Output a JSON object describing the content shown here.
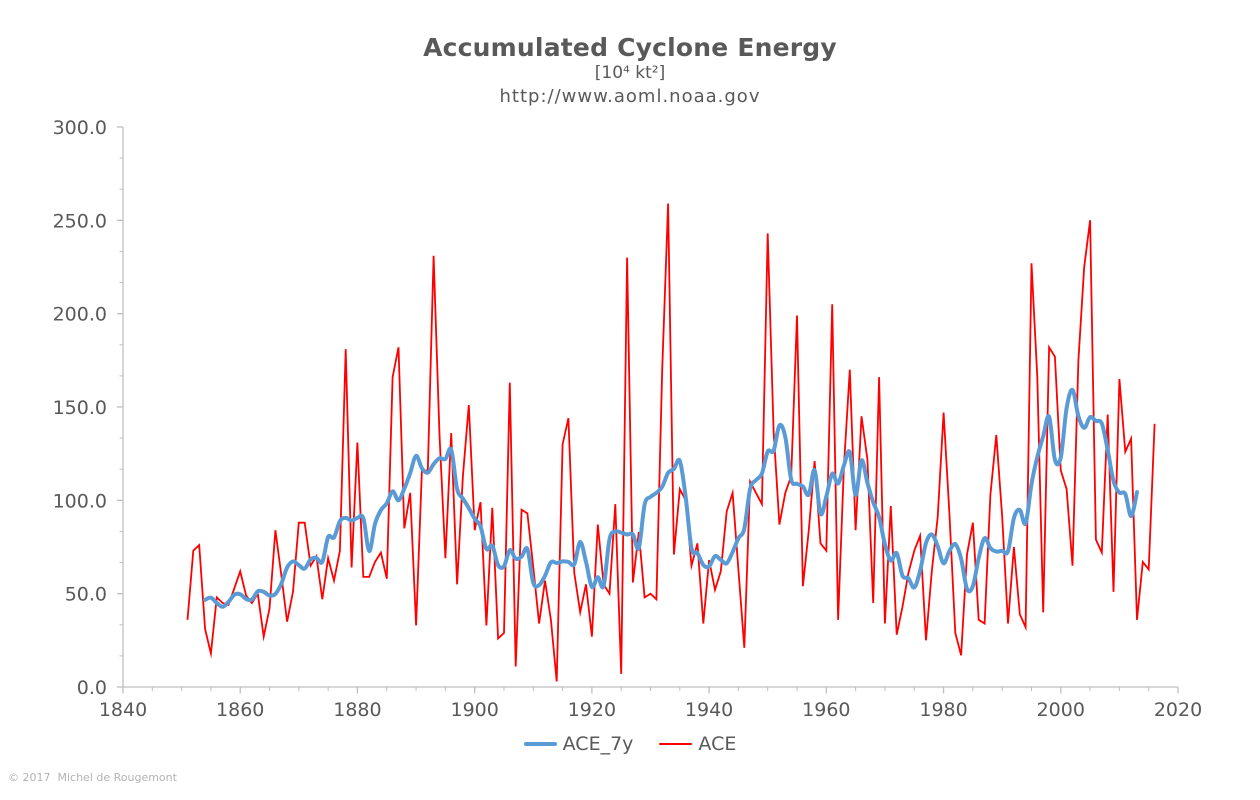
{
  "header": {
    "title": "Accumulated Cyclone Energy",
    "subtitle": "[10⁴ kt²]",
    "source_url": "http://www.aoml.noaa.gov"
  },
  "footer": {
    "copyright": "© 2017  Michel de Rougemont"
  },
  "legend": {
    "position": "bottom-center",
    "items": [
      {
        "label": "ACE_7y",
        "color": "#5B9BD5",
        "line_width": 4
      },
      {
        "label": "ACE",
        "color": "#FF0000",
        "line_width": 2
      }
    ]
  },
  "chart_data": {
    "type": "line",
    "title": "Accumulated Cyclone Energy",
    "subtitle": "[10⁴ kt²]",
    "source": "http://www.aoml.noaa.gov",
    "grid": false,
    "xlim": [
      1840,
      2020
    ],
    "ylim": [
      0,
      300
    ],
    "axes": {
      "x": {
        "min": 1840,
        "max": 2020,
        "tick_step": 20,
        "minor_step": 5,
        "tick_labels": [
          "1840",
          "1860",
          "1880",
          "1900",
          "1920",
          "1940",
          "1960",
          "1980",
          "2000",
          "2020"
        ]
      },
      "y": {
        "min": 0,
        "max": 300,
        "tick_step": 50,
        "minor_divisions": 3,
        "tick_labels": [
          "0.0",
          "50.0",
          "100.0",
          "150.0",
          "200.0",
          "250.0",
          "300.0"
        ]
      }
    },
    "x_years": {
      "start": 1851,
      "end": 2016,
      "step": 1
    },
    "series": [
      {
        "name": "ACE_7y",
        "color": "#5B9BD5",
        "line_width": 4,
        "smooth": true,
        "derived": "7-year centered moving average of ACE",
        "span": {
          "start": 1854,
          "end": 2013
        }
      },
      {
        "name": "ACE",
        "color": "#FF0000",
        "line_width": 1.8,
        "smooth": false,
        "values": [
          36,
          73,
          76,
          31,
          18,
          48,
          45,
          44,
          53,
          62,
          49,
          45,
          50,
          27,
          42,
          84,
          60,
          35,
          51,
          88,
          88,
          65,
          70,
          47,
          69,
          57,
          73,
          181,
          64,
          131,
          59,
          59,
          67,
          72,
          58,
          166,
          182,
          85,
          104,
          33,
          116,
          116,
          231,
          135,
          69,
          136,
          55,
          113,
          151,
          84,
          99,
          33,
          96,
          26,
          29,
          163,
          11,
          95,
          93,
          64,
          34,
          57,
          36,
          3,
          130,
          144,
          61,
          40,
          55,
          27,
          87,
          55,
          50,
          98,
          7,
          230,
          56,
          83,
          48,
          50,
          47,
          170,
          259,
          71,
          106,
          100,
          65,
          77,
          34,
          68,
          52,
          62,
          94,
          104,
          63,
          21,
          110,
          104,
          98,
          243,
          137,
          87,
          104,
          113,
          199,
          54,
          84,
          121,
          77,
          73,
          205,
          36,
          118,
          170,
          84,
          145,
          122,
          45,
          166,
          34,
          97,
          28,
          43,
          61,
          73,
          81,
          25,
          62,
          91,
          147,
          93,
          29,
          17,
          71,
          88,
          36,
          34,
          103,
          135,
          91,
          34,
          75,
          39,
          32,
          227,
          166,
          40,
          182,
          177,
          116,
          106,
          65,
          175,
          225,
          250,
          79,
          72,
          146,
          51,
          165,
          126,
          133,
          36,
          67,
          63,
          141
        ]
      }
    ]
  }
}
